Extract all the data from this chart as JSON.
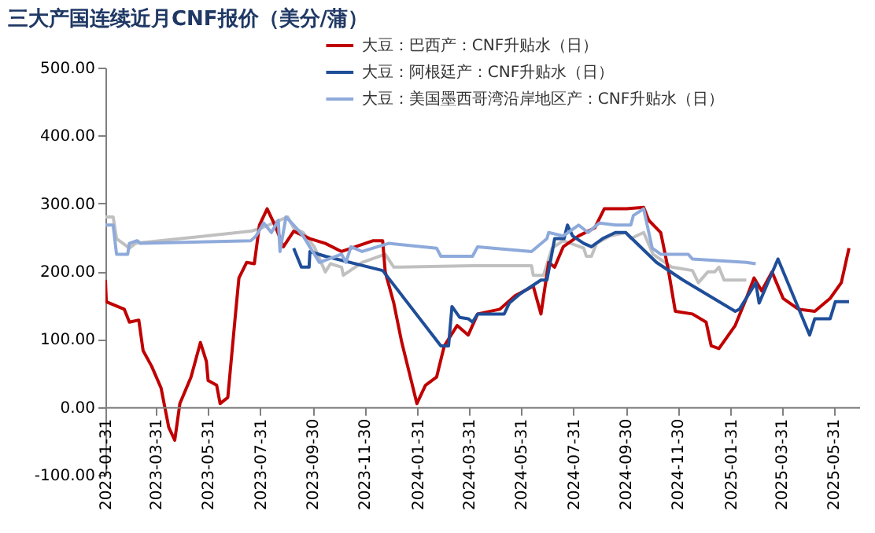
{
  "chart_data": {
    "type": "line",
    "title": "三大产国连续近月CNF报价（美分/蒲）",
    "xlim": [
      "2023-01-31",
      "2025-06-30"
    ],
    "xticks": [
      "2023-01-31",
      "2023-03-31",
      "2023-05-31",
      "2023-07-31",
      "2023-09-30",
      "2023-11-30",
      "2024-01-31",
      "2024-03-31",
      "2024-05-31",
      "2024-07-31",
      "2024-09-30",
      "2024-11-30",
      "2025-01-31",
      "2025-03-31",
      "2025-05-31"
    ],
    "ylim": [
      -100,
      500
    ],
    "yticks": [
      {
        "value": -100,
        "label": "-100.00"
      },
      {
        "value": 0,
        "label": "0.00"
      },
      {
        "value": 100,
        "label": "100.00"
      },
      {
        "value": 200,
        "label": "200.00"
      },
      {
        "value": 300,
        "label": "300.00"
      },
      {
        "value": 400,
        "label": "400.00"
      },
      {
        "value": 500,
        "label": "500.00"
      }
    ],
    "grid": false,
    "legend": "top",
    "marker": "none",
    "line_style": "solid",
    "series": [
      {
        "name": "大豆：巴西产：CNF升贴水（日）",
        "color": "#c00000",
        "x": [
          "2023-01-31",
          "2023-02-01",
          "2023-02-22",
          "2023-02-28",
          "2023-03-11",
          "2023-03-16",
          "2023-03-26",
          "2023-04-06",
          "2023-04-15",
          "2023-04-22",
          "2023-04-28",
          "2023-05-11",
          "2023-05-22",
          "2023-05-29",
          "2023-05-31",
          "2023-06-10",
          "2023-06-14",
          "2023-06-23",
          "2023-07-02",
          "2023-07-06",
          "2023-07-15",
          "2023-07-24",
          "2023-07-30",
          "2023-08-08",
          "2023-08-17",
          "2023-08-27",
          "2023-09-08",
          "2023-09-27",
          "2023-10-15",
          "2023-11-03",
          "2023-12-10",
          "2023-12-21",
          "2023-12-24",
          "2024-01-03",
          "2024-01-12",
          "2024-01-21",
          "2024-01-30",
          "2024-02-09",
          "2024-02-22",
          "2024-03-02",
          "2024-03-17",
          "2024-03-30",
          "2024-04-10",
          "2024-05-06",
          "2024-05-24",
          "2024-06-14",
          "2024-06-23",
          "2024-07-02",
          "2024-07-09",
          "2024-07-19",
          "2024-08-06",
          "2024-08-25",
          "2024-09-05",
          "2024-10-01",
          "2024-10-21",
          "2024-10-27",
          "2024-11-10",
          "2024-11-19",
          "2024-11-27",
          "2024-12-17",
          "2025-01-02",
          "2025-01-08",
          "2025-01-17",
          "2025-02-05",
          "2025-02-18",
          "2025-02-27",
          "2025-03-08",
          "2025-03-20",
          "2025-04-02",
          "2025-04-20",
          "2025-05-09",
          "2025-05-27",
          "2025-06-09",
          "2025-06-18"
        ],
        "values": [
          187,
          155,
          144,
          125,
          128,
          83,
          60,
          28,
          -30,
          -49,
          5,
          44,
          95,
          67,
          39,
          32,
          5,
          14,
          137,
          190,
          213,
          211,
          268,
          292,
          268,
          236,
          259,
          248,
          241,
          229,
          245,
          245,
          199,
          153,
          97,
          51,
          5,
          32,
          44,
          90,
          120,
          106,
          137,
          144,
          164,
          178,
          137,
          213,
          206,
          236,
          252,
          264,
          292,
          292,
          294,
          275,
          257,
          201,
          141,
          137,
          125,
          90,
          86,
          120,
          160,
          190,
          171,
          199,
          160,
          144,
          141,
          160,
          183,
          234
        ]
      },
      {
        "name": "大豆：阿根廷产：CNF升贴水（日）",
        "color": "#1f4e99",
        "x": [
          "2023-09-08",
          "2023-09-17",
          "2023-09-26",
          "2023-09-27",
          "2023-10-15",
          "2023-12-21",
          "2024-02-27",
          "2024-03-07",
          "2024-03-11",
          "2024-03-20",
          "2024-03-30",
          "2024-04-04",
          "2024-04-10",
          "2024-05-11",
          "2024-05-17",
          "2024-05-30",
          "2024-06-23",
          "2024-06-30",
          "2024-07-09",
          "2024-07-20",
          "2024-07-24",
          "2024-07-30",
          "2024-08-12",
          "2024-08-21",
          "2024-09-03",
          "2024-09-18",
          "2024-09-30",
          "2024-11-05",
          "2024-12-06",
          "2025-02-05",
          "2025-02-10",
          "2025-03-01",
          "2025-03-05",
          "2025-03-27",
          "2025-05-03",
          "2025-05-09",
          "2025-05-27",
          "2025-06-02",
          "2025-06-18"
        ],
        "values": [
          234,
          206,
          206,
          229,
          222,
          201,
          90,
          90,
          148,
          132,
          130,
          125,
          137,
          137,
          153,
          167,
          187,
          187,
          248,
          248,
          268,
          252,
          241,
          236,
          248,
          257,
          257,
          213,
          187,
          141,
          144,
          183,
          153,
          218,
          106,
          130,
          130,
          155,
          155
        ]
      },
      {
        "name": "大豆：美国墨西哥湾沿岸地区产：CNF升贴水（日）",
        "color": "#8eaadb",
        "x": [
          "2023-01-31",
          "2023-02-09",
          "2023-02-13",
          "2023-02-26",
          "2023-02-28",
          "2023-03-09",
          "2023-03-13",
          "2023-07-20",
          "2023-07-26",
          "2023-08-04",
          "2023-08-13",
          "2023-08-21",
          "2023-08-23",
          "2023-08-30",
          "2023-09-08",
          "2023-09-19",
          "2023-10-08",
          "2023-11-03",
          "2023-11-08",
          "2023-11-14",
          "2023-11-27",
          "2023-12-15",
          "2023-12-28",
          "2024-02-22",
          "2024-02-27",
          "2024-04-04",
          "2024-04-10",
          "2024-06-12",
          "2024-06-30",
          "2024-07-02",
          "2024-07-19",
          "2024-08-06",
          "2024-08-17",
          "2024-08-30",
          "2024-09-18",
          "2024-10-06",
          "2024-10-09",
          "2024-10-21",
          "2024-10-31",
          "2024-11-10",
          "2024-12-12",
          "2024-12-17",
          "2025-02-18",
          "2025-03-01"
        ],
        "values": [
          268,
          268,
          225,
          225,
          241,
          245,
          241,
          245,
          252,
          271,
          257,
          275,
          229,
          280,
          268,
          252,
          213,
          225,
          213,
          236,
          229,
          236,
          241,
          234,
          222,
          222,
          236,
          229,
          248,
          257,
          252,
          268,
          257,
          271,
          268,
          268,
          282,
          292,
          234,
          225,
          225,
          218,
          213,
          211
        ]
      },
      {
        "color": "#c0c0c0",
        "x": [
          "2023-01-31",
          "2023-02-09",
          "2023-02-13",
          "2023-02-28",
          "2023-03-07",
          "2023-07-20",
          "2023-08-02",
          "2023-09-01",
          "2023-09-08",
          "2023-09-19",
          "2023-10-02",
          "2023-10-15",
          "2023-10-21",
          "2023-11-03",
          "2023-11-05",
          "2023-11-27",
          "2023-12-24",
          "2024-01-03",
          "2024-04-04",
          "2024-06-12",
          "2024-06-14",
          "2024-06-26",
          "2024-07-06",
          "2024-07-19",
          "2024-08-12",
          "2024-08-15",
          "2024-08-21",
          "2024-08-27",
          "2024-09-12",
          "2024-09-30",
          "2024-10-06",
          "2024-10-21",
          "2024-11-01",
          "2024-11-23",
          "2024-12-17",
          "2024-12-24",
          "2025-01-04",
          "2025-01-12",
          "2025-01-17",
          "2025-01-23",
          "2025-02-18"
        ],
        "values": [
          280,
          280,
          248,
          234,
          241,
          259,
          264,
          280,
          264,
          257,
          236,
          199,
          211,
          206,
          194,
          213,
          225,
          206,
          208,
          208,
          194,
          194,
          234,
          245,
          234,
          222,
          222,
          241,
          252,
          257,
          248,
          257,
          225,
          206,
          201,
          183,
          199,
          199,
          206,
          187,
          187
        ]
      }
    ]
  }
}
